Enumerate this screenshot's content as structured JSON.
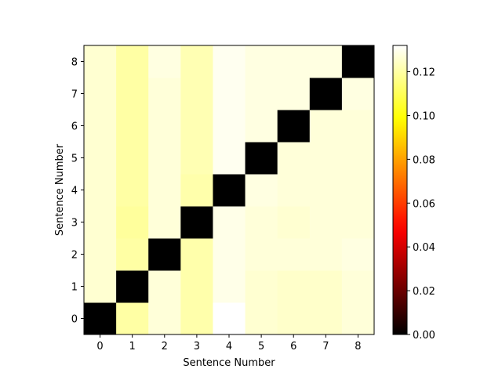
{
  "chart_data": {
    "type": "heatmap",
    "title": "",
    "xlabel": "Sentence Number",
    "ylabel": "Sentence Number",
    "x_categories": [
      "0",
      "1",
      "2",
      "3",
      "4",
      "5",
      "6",
      "7",
      "8"
    ],
    "y_categories": [
      "0",
      "1",
      "2",
      "3",
      "4",
      "5",
      "6",
      "7",
      "8"
    ],
    "colormap": "hot",
    "vmin": 0.0,
    "vmax": 0.132,
    "colorbar_ticks": [
      "0.00",
      "0.02",
      "0.04",
      "0.06",
      "0.08",
      "0.10",
      "0.12"
    ],
    "colorbar_tick_values": [
      0.0,
      0.02,
      0.04,
      0.06,
      0.08,
      0.1,
      0.12
    ],
    "origin": "lower",
    "grid": false,
    "values": [
      [
        0.0,
        0.12,
        0.127,
        0.121,
        0.132,
        0.126,
        0.125,
        0.125,
        0.127
      ],
      [
        0.126,
        0.0,
        0.127,
        0.121,
        0.129,
        0.126,
        0.125,
        0.125,
        0.127
      ],
      [
        0.126,
        0.12,
        0.0,
        0.121,
        0.129,
        0.127,
        0.127,
        0.127,
        0.128
      ],
      [
        0.126,
        0.119,
        0.127,
        0.0,
        0.129,
        0.127,
        0.126,
        0.127,
        0.127
      ],
      [
        0.126,
        0.12,
        0.127,
        0.121,
        0.0,
        0.128,
        0.127,
        0.127,
        0.127
      ],
      [
        0.126,
        0.12,
        0.127,
        0.122,
        0.13,
        0.0,
        0.127,
        0.127,
        0.127
      ],
      [
        0.126,
        0.12,
        0.127,
        0.122,
        0.13,
        0.128,
        0.0,
        0.127,
        0.127
      ],
      [
        0.126,
        0.12,
        0.127,
        0.122,
        0.13,
        0.128,
        0.128,
        0.0,
        0.128
      ],
      [
        0.126,
        0.12,
        0.128,
        0.122,
        0.13,
        0.128,
        0.128,
        0.128,
        0.0
      ]
    ]
  }
}
